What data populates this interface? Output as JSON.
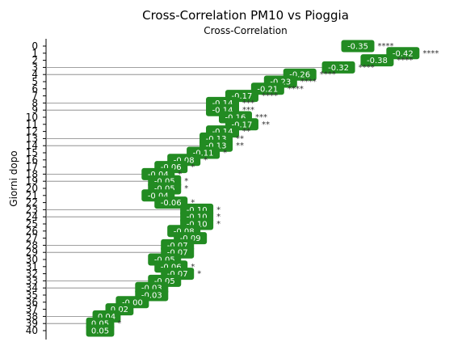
{
  "chart_data": {
    "type": "scatter",
    "title": "Cross-Correlation PM10 vs Pioggia",
    "subtitle": "Cross-Correlation",
    "xlabel": "",
    "ylabel": "Giorni dopo",
    "lags": [
      0,
      1,
      2,
      3,
      4,
      5,
      6,
      7,
      8,
      9,
      10,
      11,
      12,
      13,
      14,
      15,
      16,
      17,
      18,
      19,
      20,
      21,
      22,
      23,
      24,
      25,
      26,
      27,
      28,
      29,
      30,
      31,
      32,
      33,
      34,
      35,
      36,
      37,
      38,
      39,
      40
    ],
    "values": [
      -0.35,
      -0.42,
      -0.38,
      -0.32,
      -0.26,
      -0.23,
      -0.21,
      -0.17,
      -0.14,
      -0.14,
      -0.16,
      -0.17,
      -0.14,
      -0.13,
      -0.13,
      -0.11,
      -0.08,
      -0.06,
      -0.04,
      -0.05,
      -0.05,
      -0.04,
      -0.06,
      -0.1,
      -0.1,
      -0.1,
      -0.08,
      -0.09,
      -0.07,
      -0.07,
      -0.05,
      -0.06,
      -0.07,
      -0.05,
      -0.03,
      -0.03,
      -0.0,
      0.02,
      0.04,
      0.05,
      0.05
    ],
    "labels": [
      "-0.35",
      "-0.42",
      "-0.38",
      "-0.32",
      "-0.26",
      "-0.23",
      "-0.21",
      "-0.17",
      "-0.14",
      "-0.14",
      "-0.16",
      "-0.17",
      "-0.14",
      "-0.13",
      "-0.13",
      "-0.11",
      "-0.08",
      "-0.06",
      "-0.04",
      "-0.05",
      "-0.05",
      "-0.04",
      "-0.06",
      "-0.10",
      "-0.10",
      "-0.10",
      "-0.08",
      "-0.09",
      "-0.07",
      "-0.07",
      "-0.05",
      "-0.06",
      "-0.07",
      "-0.05",
      "-0.03",
      "-0.03",
      "-0.00",
      "0.02",
      "0.04",
      "0.05",
      "0.05"
    ],
    "significance": [
      "****",
      "****",
      "****",
      "****",
      "****",
      "****",
      "****",
      "****",
      "***",
      "***",
      "***",
      "**",
      "**",
      "**",
      "**",
      "*",
      "*",
      "*",
      "*",
      "*",
      "*",
      "",
      "*",
      "*",
      "*",
      "*",
      "",
      "",
      "",
      "",
      "",
      "*",
      "*",
      "",
      "",
      "",
      "",
      "",
      "",
      "*",
      ""
    ],
    "reference_lines_at_lags": [
      3,
      4,
      8,
      9,
      13,
      14,
      18,
      19,
      23,
      24,
      28,
      29,
      33,
      34,
      38,
      39
    ],
    "colors": {
      "label_box": "#228b22",
      "label_text": "#ffffff",
      "stars": "#333333",
      "line": "#808080"
    }
  }
}
